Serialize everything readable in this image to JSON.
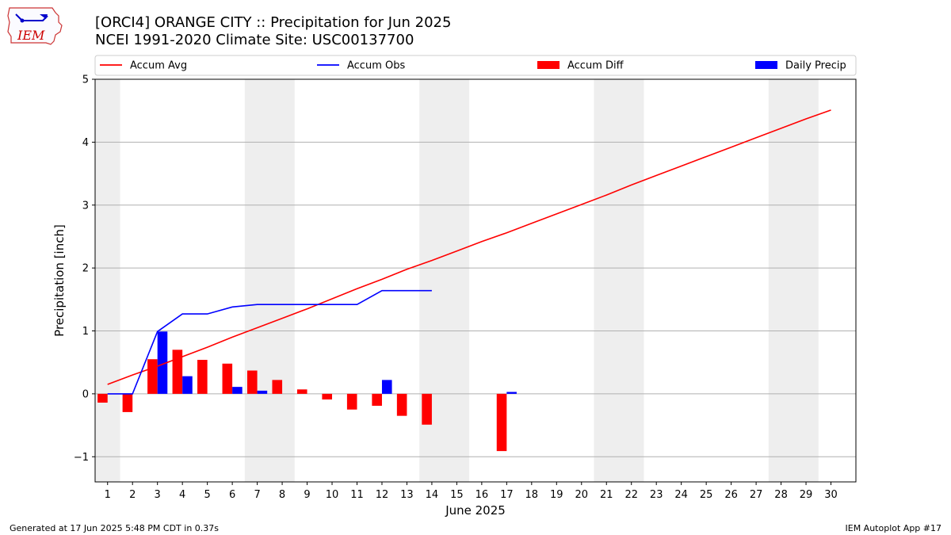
{
  "header": {
    "title": "[ORCI4] ORANGE CITY :: Precipitation for Jun 2025",
    "subtitle": "NCEI 1991-2020 Climate Site: USC00137700",
    "logo_text": "IEM"
  },
  "footer": {
    "generated": "Generated at 17 Jun 2025 5:48 PM CDT in 0.37s",
    "app": "IEM Autoplot App #17"
  },
  "chart_data": {
    "type": "bar",
    "xlabel": "June 2025",
    "ylabel": "Precipitation [inch]",
    "xlim": [
      0.5,
      31
    ],
    "ylim": [
      -1.4,
      5
    ],
    "yticks": [
      -1,
      0,
      1,
      2,
      3,
      4,
      5
    ],
    "ytick_labels": [
      "−1",
      "0",
      "1",
      "2",
      "3",
      "4",
      "5"
    ],
    "x": [
      1,
      2,
      3,
      4,
      5,
      6,
      7,
      8,
      9,
      10,
      11,
      12,
      13,
      14,
      15,
      16,
      17,
      18,
      19,
      20,
      21,
      22,
      23,
      24,
      25,
      26,
      27,
      28,
      29,
      30
    ],
    "grid": "horizontal",
    "legend_position": "top",
    "weekend_shading": [
      [
        0.5,
        1.5
      ],
      [
        6.5,
        8.5
      ],
      [
        13.5,
        15.5
      ],
      [
        20.5,
        22.5
      ],
      [
        27.5,
        29.5
      ]
    ],
    "series": [
      {
        "name": "Accum Avg",
        "kind": "line",
        "color": "#ff0000",
        "values": [
          0.15,
          0.3,
          0.44,
          0.59,
          0.74,
          0.9,
          1.05,
          1.2,
          1.35,
          1.51,
          1.67,
          1.82,
          1.98,
          2.12,
          2.27,
          2.42,
          2.56,
          2.71,
          2.86,
          3.01,
          3.16,
          3.32,
          3.47,
          3.62,
          3.77,
          3.92,
          4.07,
          4.22,
          4.37,
          4.51
        ]
      },
      {
        "name": "Accum Obs",
        "kind": "line",
        "color": "#0000ff",
        "values": [
          0.0,
          0.0,
          0.99,
          1.27,
          1.27,
          1.38,
          1.42,
          1.42,
          1.42,
          1.42,
          1.42,
          1.64,
          1.64,
          1.64,
          null,
          null,
          null,
          null,
          null,
          null,
          null,
          null,
          null,
          null,
          null,
          null,
          null,
          null,
          null,
          null
        ]
      },
      {
        "name": "Accum Diff",
        "kind": "bar",
        "color": "#ff0000",
        "values": [
          -0.14,
          -0.29,
          0.55,
          0.7,
          0.54,
          0.48,
          0.37,
          0.22,
          0.07,
          -0.09,
          -0.25,
          -0.19,
          -0.35,
          -0.49,
          null,
          null,
          -0.91,
          null,
          null,
          null,
          null,
          null,
          null,
          null,
          null,
          null,
          null,
          null,
          null,
          null
        ]
      },
      {
        "name": "Daily Precip",
        "kind": "bar",
        "color": "#0000ff",
        "values": [
          0.0,
          0.0,
          0.99,
          0.28,
          0.0,
          0.11,
          0.05,
          0.0,
          0.0,
          0.0,
          0.0,
          0.22,
          0.0,
          0.0,
          null,
          null,
          0.03,
          null,
          null,
          null,
          null,
          null,
          null,
          null,
          null,
          null,
          null,
          null,
          null,
          null
        ]
      }
    ]
  }
}
